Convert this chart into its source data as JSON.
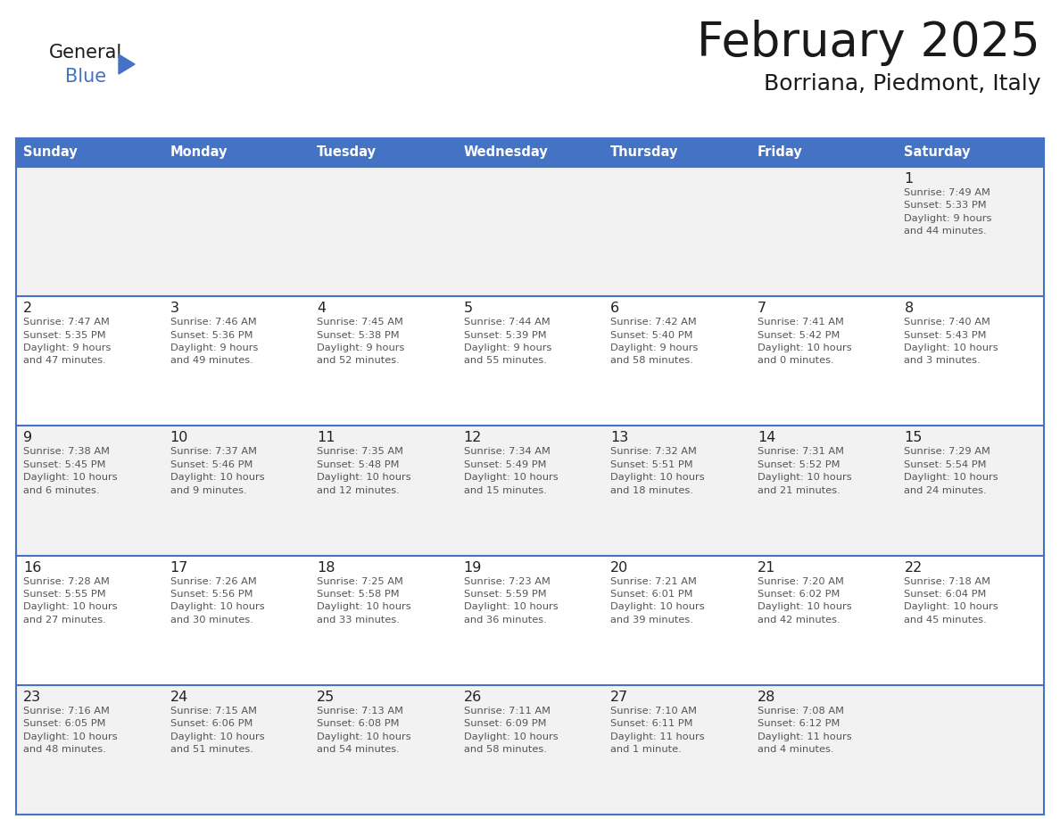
{
  "title": "February 2025",
  "subtitle": "Borriana, Piedmont, Italy",
  "header_bg": "#4472C4",
  "header_text": "#FFFFFF",
  "day_names": [
    "Sunday",
    "Monday",
    "Tuesday",
    "Wednesday",
    "Thursday",
    "Friday",
    "Saturday"
  ],
  "cell_bg_light": "#F2F2F2",
  "cell_bg_white": "#FFFFFF",
  "cell_border": "#4472C4",
  "text_color": "#555555",
  "date_color": "#222222",
  "weeks": [
    [
      {
        "day": null,
        "info": null
      },
      {
        "day": null,
        "info": null
      },
      {
        "day": null,
        "info": null
      },
      {
        "day": null,
        "info": null
      },
      {
        "day": null,
        "info": null
      },
      {
        "day": null,
        "info": null
      },
      {
        "day": 1,
        "info": "Sunrise: 7:49 AM\nSunset: 5:33 PM\nDaylight: 9 hours\nand 44 minutes."
      }
    ],
    [
      {
        "day": 2,
        "info": "Sunrise: 7:47 AM\nSunset: 5:35 PM\nDaylight: 9 hours\nand 47 minutes."
      },
      {
        "day": 3,
        "info": "Sunrise: 7:46 AM\nSunset: 5:36 PM\nDaylight: 9 hours\nand 49 minutes."
      },
      {
        "day": 4,
        "info": "Sunrise: 7:45 AM\nSunset: 5:38 PM\nDaylight: 9 hours\nand 52 minutes."
      },
      {
        "day": 5,
        "info": "Sunrise: 7:44 AM\nSunset: 5:39 PM\nDaylight: 9 hours\nand 55 minutes."
      },
      {
        "day": 6,
        "info": "Sunrise: 7:42 AM\nSunset: 5:40 PM\nDaylight: 9 hours\nand 58 minutes."
      },
      {
        "day": 7,
        "info": "Sunrise: 7:41 AM\nSunset: 5:42 PM\nDaylight: 10 hours\nand 0 minutes."
      },
      {
        "day": 8,
        "info": "Sunrise: 7:40 AM\nSunset: 5:43 PM\nDaylight: 10 hours\nand 3 minutes."
      }
    ],
    [
      {
        "day": 9,
        "info": "Sunrise: 7:38 AM\nSunset: 5:45 PM\nDaylight: 10 hours\nand 6 minutes."
      },
      {
        "day": 10,
        "info": "Sunrise: 7:37 AM\nSunset: 5:46 PM\nDaylight: 10 hours\nand 9 minutes."
      },
      {
        "day": 11,
        "info": "Sunrise: 7:35 AM\nSunset: 5:48 PM\nDaylight: 10 hours\nand 12 minutes."
      },
      {
        "day": 12,
        "info": "Sunrise: 7:34 AM\nSunset: 5:49 PM\nDaylight: 10 hours\nand 15 minutes."
      },
      {
        "day": 13,
        "info": "Sunrise: 7:32 AM\nSunset: 5:51 PM\nDaylight: 10 hours\nand 18 minutes."
      },
      {
        "day": 14,
        "info": "Sunrise: 7:31 AM\nSunset: 5:52 PM\nDaylight: 10 hours\nand 21 minutes."
      },
      {
        "day": 15,
        "info": "Sunrise: 7:29 AM\nSunset: 5:54 PM\nDaylight: 10 hours\nand 24 minutes."
      }
    ],
    [
      {
        "day": 16,
        "info": "Sunrise: 7:28 AM\nSunset: 5:55 PM\nDaylight: 10 hours\nand 27 minutes."
      },
      {
        "day": 17,
        "info": "Sunrise: 7:26 AM\nSunset: 5:56 PM\nDaylight: 10 hours\nand 30 minutes."
      },
      {
        "day": 18,
        "info": "Sunrise: 7:25 AM\nSunset: 5:58 PM\nDaylight: 10 hours\nand 33 minutes."
      },
      {
        "day": 19,
        "info": "Sunrise: 7:23 AM\nSunset: 5:59 PM\nDaylight: 10 hours\nand 36 minutes."
      },
      {
        "day": 20,
        "info": "Sunrise: 7:21 AM\nSunset: 6:01 PM\nDaylight: 10 hours\nand 39 minutes."
      },
      {
        "day": 21,
        "info": "Sunrise: 7:20 AM\nSunset: 6:02 PM\nDaylight: 10 hours\nand 42 minutes."
      },
      {
        "day": 22,
        "info": "Sunrise: 7:18 AM\nSunset: 6:04 PM\nDaylight: 10 hours\nand 45 minutes."
      }
    ],
    [
      {
        "day": 23,
        "info": "Sunrise: 7:16 AM\nSunset: 6:05 PM\nDaylight: 10 hours\nand 48 minutes."
      },
      {
        "day": 24,
        "info": "Sunrise: 7:15 AM\nSunset: 6:06 PM\nDaylight: 10 hours\nand 51 minutes."
      },
      {
        "day": 25,
        "info": "Sunrise: 7:13 AM\nSunset: 6:08 PM\nDaylight: 10 hours\nand 54 minutes."
      },
      {
        "day": 26,
        "info": "Sunrise: 7:11 AM\nSunset: 6:09 PM\nDaylight: 10 hours\nand 58 minutes."
      },
      {
        "day": 27,
        "info": "Sunrise: 7:10 AM\nSunset: 6:11 PM\nDaylight: 11 hours\nand 1 minute."
      },
      {
        "day": 28,
        "info": "Sunrise: 7:08 AM\nSunset: 6:12 PM\nDaylight: 11 hours\nand 4 minutes."
      },
      {
        "day": null,
        "info": null
      }
    ]
  ],
  "fig_width": 11.88,
  "fig_height": 9.18,
  "dpi": 100
}
